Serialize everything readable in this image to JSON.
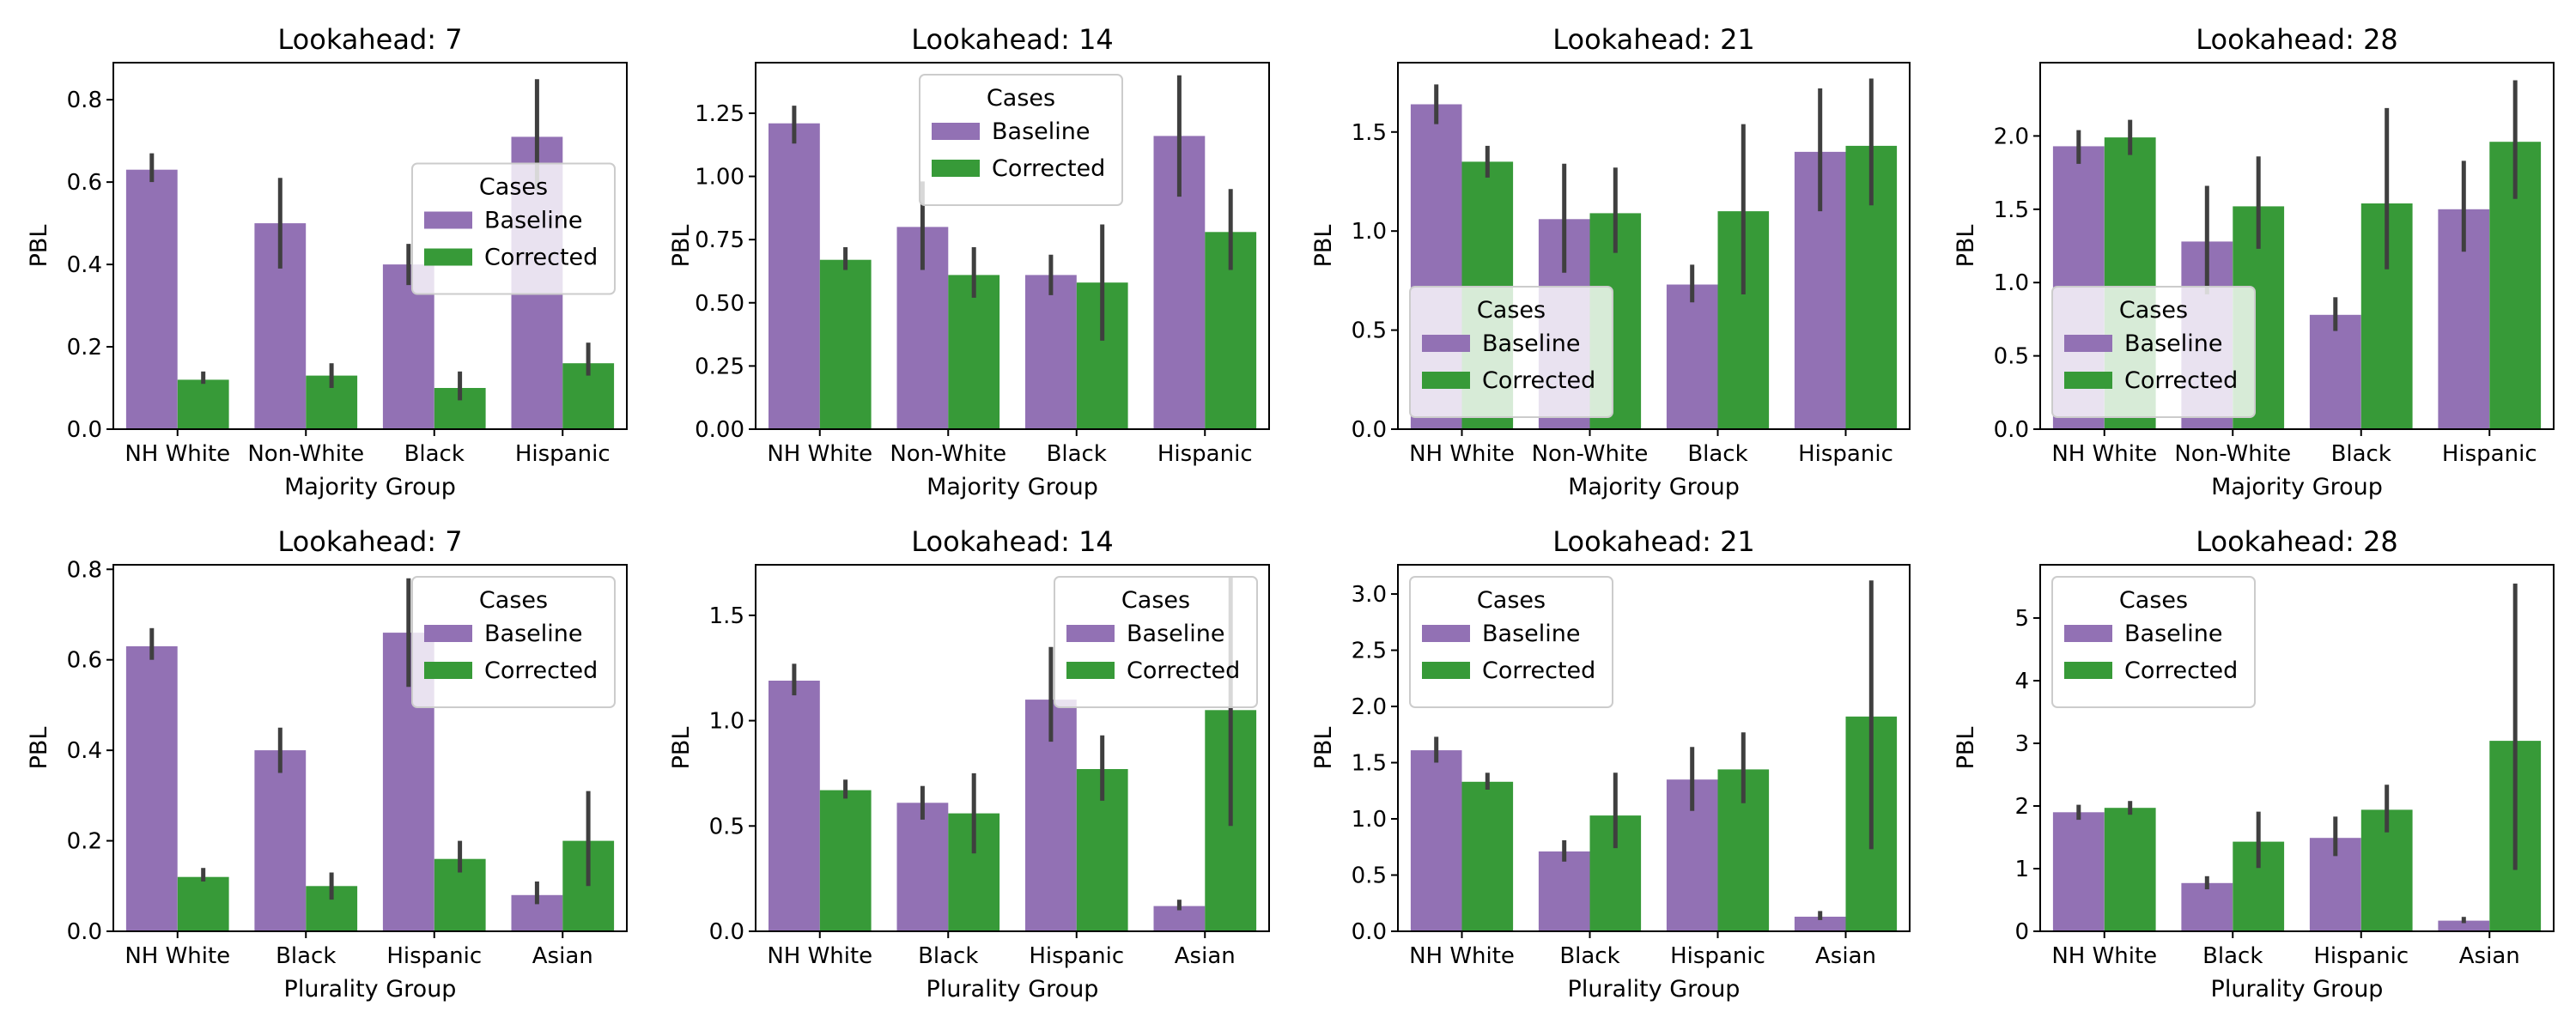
{
  "figure": {
    "colors": {
      "baseline": "#9271b4",
      "corrected": "#379a38",
      "errorbar": "#3f3f3f"
    }
  },
  "chart_data": [
    {
      "type": "bar",
      "title": "Lookahead: 7",
      "xlabel": "Majority Group",
      "ylabel": "PBL",
      "categories": [
        "NH White",
        "Non-White",
        "Black",
        "Hispanic"
      ],
      "ylim": [
        0,
        0.89
      ],
      "yticks": [
        "0.0",
        "0.2",
        "0.4",
        "0.6",
        "0.8"
      ],
      "ytick_values": [
        0,
        0.2,
        0.4,
        0.6,
        0.8
      ],
      "series": [
        {
          "name": "Baseline",
          "values": [
            0.63,
            0.5,
            0.4,
            0.71
          ],
          "ci": [
            [
              0.6,
              0.67
            ],
            [
              0.39,
              0.61
            ],
            [
              0.35,
              0.45
            ],
            [
              0.58,
              0.85
            ]
          ]
        },
        {
          "name": "Corrected",
          "values": [
            0.12,
            0.13,
            0.1,
            0.16
          ],
          "ci": [
            [
              0.11,
              0.14
            ],
            [
              0.1,
              0.16
            ],
            [
              0.07,
              0.14
            ],
            [
              0.13,
              0.21
            ]
          ]
        }
      ],
      "legend": {
        "title": "Cases",
        "labels": [
          "Baseline",
          "Corrected"
        ],
        "location": "center-right"
      }
    },
    {
      "type": "bar",
      "title": "Lookahead: 14",
      "xlabel": "Majority Group",
      "ylabel": "PBL",
      "categories": [
        "NH White",
        "Non-White",
        "Black",
        "Hispanic"
      ],
      "ylim": [
        0,
        1.45
      ],
      "yticks": [
        "0.00",
        "0.25",
        "0.50",
        "0.75",
        "1.00",
        "1.25"
      ],
      "ytick_values": [
        0,
        0.25,
        0.5,
        0.75,
        1.0,
        1.25
      ],
      "series": [
        {
          "name": "Baseline",
          "values": [
            1.21,
            0.8,
            0.61,
            1.16
          ],
          "ci": [
            [
              1.13,
              1.28
            ],
            [
              0.63,
              0.98
            ],
            [
              0.53,
              0.69
            ],
            [
              0.92,
              1.4
            ]
          ]
        },
        {
          "name": "Corrected",
          "values": [
            0.67,
            0.61,
            0.58,
            0.78
          ],
          "ci": [
            [
              0.63,
              0.72
            ],
            [
              0.52,
              0.72
            ],
            [
              0.35,
              0.81
            ],
            [
              0.63,
              0.95
            ]
          ]
        }
      ],
      "legend": {
        "title": "Cases",
        "labels": [
          "Baseline",
          "Corrected"
        ],
        "location": "top-center"
      }
    },
    {
      "type": "bar",
      "title": "Lookahead: 21",
      "xlabel": "Majority Group",
      "ylabel": "PBL",
      "categories": [
        "NH White",
        "Non-White",
        "Black",
        "Hispanic"
      ],
      "ylim": [
        0,
        1.85
      ],
      "yticks": [
        "0.0",
        "0.5",
        "1.0",
        "1.5"
      ],
      "ytick_values": [
        0,
        0.5,
        1.0,
        1.5
      ],
      "series": [
        {
          "name": "Baseline",
          "values": [
            1.64,
            1.06,
            0.73,
            1.4
          ],
          "ci": [
            [
              1.54,
              1.74
            ],
            [
              0.79,
              1.34
            ],
            [
              0.64,
              0.83
            ],
            [
              1.1,
              1.72
            ]
          ]
        },
        {
          "name": "Corrected",
          "values": [
            1.35,
            1.09,
            1.1,
            1.43
          ],
          "ci": [
            [
              1.27,
              1.43
            ],
            [
              0.89,
              1.32
            ],
            [
              0.68,
              1.54
            ],
            [
              1.13,
              1.77
            ]
          ]
        }
      ],
      "legend": {
        "title": "Cases",
        "labels": [
          "Baseline",
          "Corrected"
        ],
        "location": "lower-left"
      }
    },
    {
      "type": "bar",
      "title": "Lookahead: 28",
      "xlabel": "Majority Group",
      "ylabel": "PBL",
      "categories": [
        "NH White",
        "Non-White",
        "Black",
        "Hispanic"
      ],
      "ylim": [
        0,
        2.5
      ],
      "yticks": [
        "0.0",
        "0.5",
        "1.0",
        "1.5",
        "2.0"
      ],
      "ytick_values": [
        0,
        0.5,
        1.0,
        1.5,
        2.0
      ],
      "series": [
        {
          "name": "Baseline",
          "values": [
            1.93,
            1.28,
            0.78,
            1.5
          ],
          "ci": [
            [
              1.81,
              2.04
            ],
            [
              0.92,
              1.66
            ],
            [
              0.67,
              0.9
            ],
            [
              1.21,
              1.83
            ]
          ]
        },
        {
          "name": "Corrected",
          "values": [
            1.99,
            1.52,
            1.54,
            1.96
          ],
          "ci": [
            [
              1.87,
              2.11
            ],
            [
              1.23,
              1.86
            ],
            [
              1.09,
              2.19
            ],
            [
              1.57,
              2.38
            ]
          ]
        }
      ],
      "legend": {
        "title": "Cases",
        "labels": [
          "Baseline",
          "Corrected"
        ],
        "location": "lower-left"
      }
    },
    {
      "type": "bar",
      "title": "Lookahead: 7",
      "xlabel": "Plurality Group",
      "ylabel": "PBL",
      "categories": [
        "NH White",
        "Black",
        "Hispanic",
        "Asian"
      ],
      "ylim": [
        0,
        0.81
      ],
      "yticks": [
        "0.0",
        "0.2",
        "0.4",
        "0.6",
        "0.8"
      ],
      "ytick_values": [
        0,
        0.2,
        0.4,
        0.6,
        0.8
      ],
      "series": [
        {
          "name": "Baseline",
          "values": [
            0.63,
            0.4,
            0.66,
            0.08
          ],
          "ci": [
            [
              0.6,
              0.67
            ],
            [
              0.35,
              0.45
            ],
            [
              0.54,
              0.78
            ],
            [
              0.06,
              0.11
            ]
          ]
        },
        {
          "name": "Corrected",
          "values": [
            0.12,
            0.1,
            0.16,
            0.2
          ],
          "ci": [
            [
              0.11,
              0.14
            ],
            [
              0.07,
              0.13
            ],
            [
              0.13,
              0.2
            ],
            [
              0.1,
              0.31
            ]
          ]
        }
      ],
      "legend": {
        "title": "Cases",
        "labels": [
          "Baseline",
          "Corrected"
        ],
        "location": "top-right"
      }
    },
    {
      "type": "bar",
      "title": "Lookahead: 14",
      "xlabel": "Plurality Group",
      "ylabel": "PBL",
      "categories": [
        "NH White",
        "Black",
        "Hispanic",
        "Asian"
      ],
      "ylim": [
        0,
        1.74
      ],
      "yticks": [
        "0.0",
        "0.5",
        "1.0",
        "1.5"
      ],
      "ytick_values": [
        0,
        0.5,
        1.0,
        1.5
      ],
      "series": [
        {
          "name": "Baseline",
          "values": [
            1.19,
            0.61,
            1.1,
            0.12
          ],
          "ci": [
            [
              1.12,
              1.27
            ],
            [
              0.53,
              0.69
            ],
            [
              0.9,
              1.35
            ],
            [
              0.1,
              0.15
            ]
          ]
        },
        {
          "name": "Corrected",
          "values": [
            0.67,
            0.56,
            0.77,
            1.05
          ],
          "ci": [
            [
              0.63,
              0.72
            ],
            [
              0.37,
              0.75
            ],
            [
              0.62,
              0.93
            ],
            [
              0.5,
              1.68
            ]
          ]
        }
      ],
      "legend": {
        "title": "Cases",
        "labels": [
          "Baseline",
          "Corrected"
        ],
        "location": "top-right"
      }
    },
    {
      "type": "bar",
      "title": "Lookahead: 21",
      "xlabel": "Plurality Group",
      "ylabel": "PBL",
      "categories": [
        "NH White",
        "Black",
        "Hispanic",
        "Asian"
      ],
      "ylim": [
        0,
        3.26
      ],
      "yticks": [
        "0.0",
        "0.5",
        "1.0",
        "1.5",
        "2.0",
        "2.5",
        "3.0"
      ],
      "ytick_values": [
        0,
        0.5,
        1.0,
        1.5,
        2.0,
        2.5,
        3.0
      ],
      "series": [
        {
          "name": "Baseline",
          "values": [
            1.61,
            0.71,
            1.35,
            0.13
          ],
          "ci": [
            [
              1.5,
              1.73
            ],
            [
              0.62,
              0.81
            ],
            [
              1.07,
              1.64
            ],
            [
              0.1,
              0.18
            ]
          ]
        },
        {
          "name": "Corrected",
          "values": [
            1.33,
            1.03,
            1.44,
            1.91
          ],
          "ci": [
            [
              1.26,
              1.41
            ],
            [
              0.74,
              1.41
            ],
            [
              1.14,
              1.77
            ],
            [
              0.73,
              3.12
            ]
          ]
        }
      ],
      "legend": {
        "title": "Cases",
        "labels": [
          "Baseline",
          "Corrected"
        ],
        "location": "top-left"
      }
    },
    {
      "type": "bar",
      "title": "Lookahead: 28",
      "xlabel": "Plurality Group",
      "ylabel": "PBL",
      "categories": [
        "NH White",
        "Black",
        "Hispanic",
        "Asian"
      ],
      "ylim": [
        0,
        5.85
      ],
      "yticks": [
        "0",
        "1",
        "2",
        "3",
        "4",
        "5"
      ],
      "ytick_values": [
        0,
        1,
        2,
        3,
        4,
        5
      ],
      "series": [
        {
          "name": "Baseline",
          "values": [
            1.9,
            0.77,
            1.49,
            0.17
          ],
          "ci": [
            [
              1.78,
              2.02
            ],
            [
              0.67,
              0.88
            ],
            [
              1.2,
              1.83
            ],
            [
              0.13,
              0.23
            ]
          ]
        },
        {
          "name": "Corrected",
          "values": [
            1.97,
            1.43,
            1.94,
            3.04
          ],
          "ci": [
            [
              1.86,
              2.08
            ],
            [
              1.01,
              1.91
            ],
            [
              1.58,
              2.34
            ],
            [
              0.98,
              5.55
            ]
          ]
        }
      ],
      "legend": {
        "title": "Cases",
        "labels": [
          "Baseline",
          "Corrected"
        ],
        "location": "top-left"
      }
    }
  ]
}
